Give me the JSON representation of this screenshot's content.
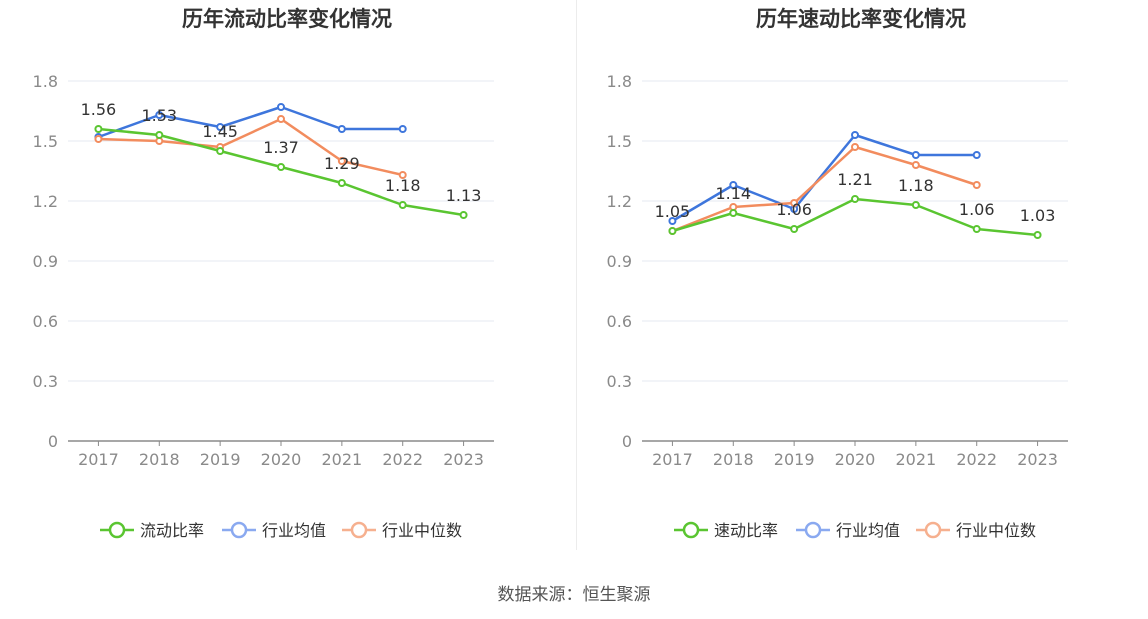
{
  "source": "数据来源：恒生聚源",
  "chart_data": [
    {
      "type": "line",
      "title": "历年流动比率变化情况",
      "categories": [
        "2017",
        "2018",
        "2019",
        "2020",
        "2021",
        "2022",
        "2023"
      ],
      "yticks": [
        "0",
        "0.3",
        "0.6",
        "0.9",
        "1.2",
        "1.5",
        "1.8"
      ],
      "ylim": [
        0,
        1.8
      ],
      "grid": true,
      "legend_position": "bottom",
      "series": [
        {
          "name": "流动比率",
          "color": "#5ac531",
          "values": [
            1.56,
            1.53,
            1.45,
            1.37,
            1.29,
            1.18,
            1.13
          ],
          "labels": [
            "1.56",
            "1.53",
            "1.45",
            "1.37",
            "1.29",
            "1.18",
            "1.13"
          ]
        },
        {
          "name": "行业均值",
          "color": "#3e76dc",
          "values": [
            1.52,
            1.63,
            1.57,
            1.67,
            1.56,
            1.56,
            null
          ]
        },
        {
          "name": "行业中位数",
          "color": "#f28c5e",
          "values": [
            1.51,
            1.5,
            1.47,
            1.61,
            1.4,
            1.33,
            null
          ]
        }
      ]
    },
    {
      "type": "line",
      "title": "历年速动比率变化情况",
      "categories": [
        "2017",
        "2018",
        "2019",
        "2020",
        "2021",
        "2022",
        "2023"
      ],
      "yticks": [
        "0",
        "0.3",
        "0.6",
        "0.9",
        "1.2",
        "1.5",
        "1.8"
      ],
      "ylim": [
        0,
        1.8
      ],
      "grid": true,
      "legend_position": "bottom",
      "series": [
        {
          "name": "速动比率",
          "color": "#5ac531",
          "values": [
            1.05,
            1.14,
            1.06,
            1.21,
            1.18,
            1.06,
            1.03
          ],
          "labels": [
            "1.05",
            "1.14",
            "1.06",
            "1.21",
            "1.18",
            "1.06",
            "1.03"
          ]
        },
        {
          "name": "行业均值",
          "color": "#3e76dc",
          "values": [
            1.1,
            1.28,
            1.16,
            1.53,
            1.43,
            1.43,
            null
          ]
        },
        {
          "name": "行业中位数",
          "color": "#f28c5e",
          "values": [
            1.05,
            1.17,
            1.19,
            1.47,
            1.38,
            1.28,
            null
          ]
        }
      ]
    }
  ]
}
